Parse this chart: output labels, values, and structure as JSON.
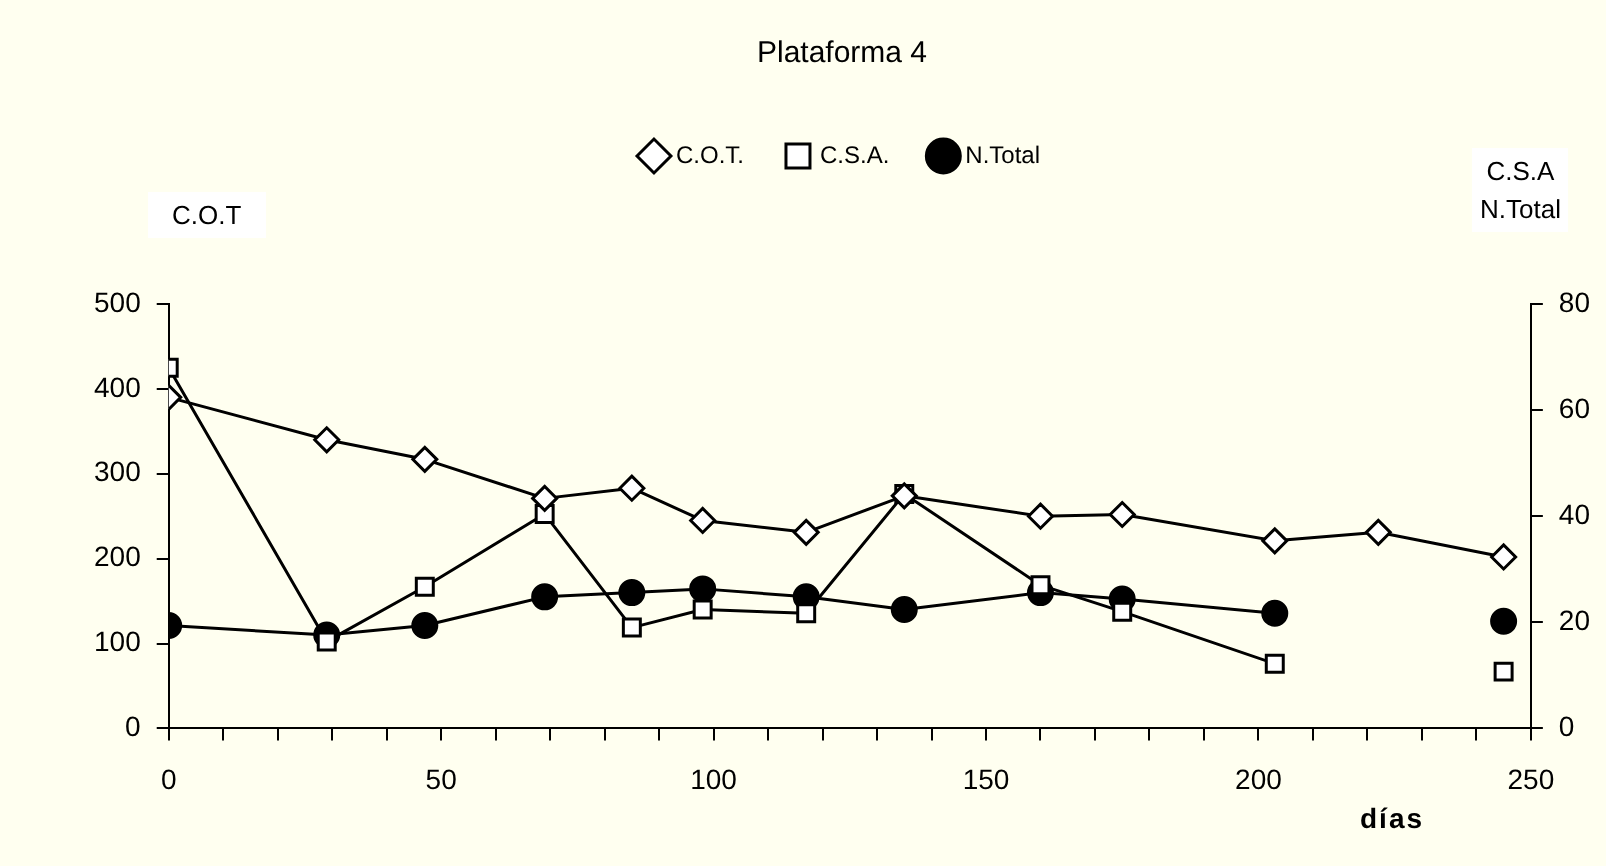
{
  "chart_data": {
    "type": "line",
    "title": "Plataforma 4",
    "xlabel": "días",
    "ylabel": "C.O.T",
    "y2label": "C.S.A\nN.Total",
    "x": [
      0,
      29,
      47,
      69,
      85,
      98,
      117,
      135,
      160,
      175,
      203,
      222,
      245
    ],
    "series": [
      {
        "name": "C.O.T.",
        "color": "#000000",
        "marker": "diamond",
        "values": [
          390,
          340,
          317,
          271,
          283,
          245,
          231,
          274,
          250,
          252,
          221,
          231,
          202
        ]
      },
      {
        "name": "C.S.A.",
        "color": "#000000",
        "marker": "square",
        "axis": "y2",
        "values": [
          68,
          16.4,
          26.7,
          40.4,
          19,
          22.4,
          21.7,
          44.2,
          27,
          22,
          12.2,
          null,
          10.7
        ]
      },
      {
        "name": "N.Total",
        "color": "#000000",
        "marker": "circle",
        "axis": "y2",
        "values": [
          19.4,
          17.6,
          19.4,
          24.8,
          25.6,
          26.3,
          24.8,
          22.4,
          25.6,
          24.4,
          21.7,
          null,
          20.2
        ]
      }
    ],
    "xlim": [
      0,
      250
    ],
    "xticks": [
      0,
      {
        "value": 10,
        "label": null
      },
      {
        "value": 20,
        "label": null
      },
      {
        "value": 30,
        "label": null
      },
      {
        "value": 40,
        "label": null
      },
      50,
      {
        "value": 60,
        "label": null
      },
      {
        "value": 70,
        "label": null
      },
      {
        "value": 80,
        "label": null
      },
      {
        "value": 90,
        "label": null
      },
      100,
      {
        "value": 110,
        "label": null
      },
      {
        "value": 120,
        "label": null
      },
      {
        "value": 130,
        "label": null
      },
      {
        "value": 140,
        "label": null
      },
      150,
      {
        "value": 160,
        "label": null
      },
      {
        "value": 170,
        "label": null
      },
      {
        "value": 180,
        "label": null
      },
      {
        "value": 190,
        "label": null
      },
      200,
      {
        "value": 210,
        "label": null
      },
      {
        "value": 220,
        "label": null
      },
      {
        "value": 230,
        "label": null
      },
      {
        "value": 240,
        "label": null
      },
      250
    ],
    "ylim": [
      0,
      500
    ],
    "yticks": [
      0,
      100,
      200,
      300,
      400,
      500
    ],
    "y2lim": [
      0,
      80
    ],
    "y2ticks": [
      0,
      20,
      40,
      60,
      80
    ],
    "grid": false,
    "legend": "top",
    "line_style": "solid"
  }
}
